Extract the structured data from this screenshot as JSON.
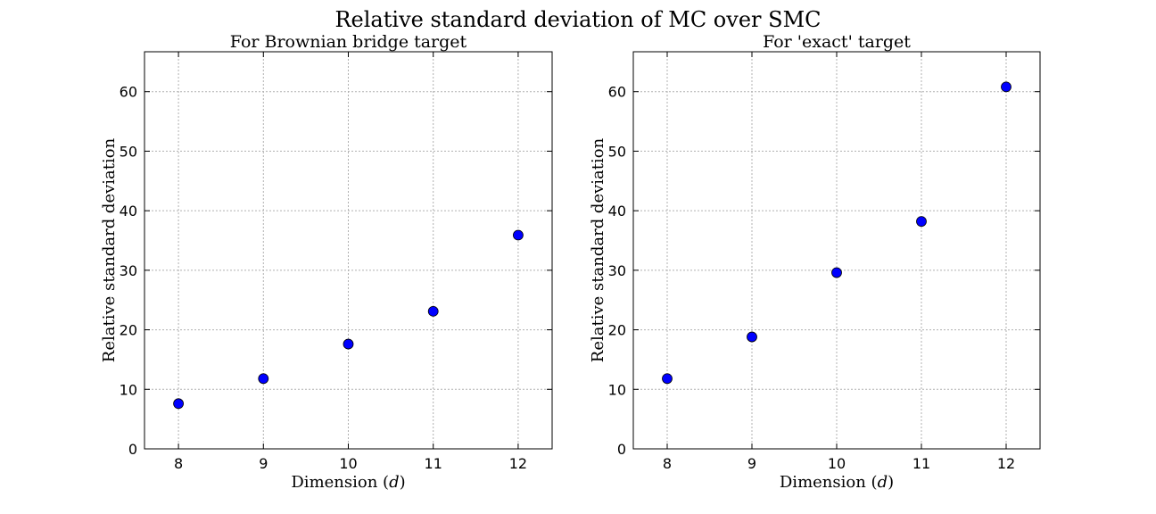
{
  "figure": {
    "title": "Relative standard deviation of MC over SMC"
  },
  "chart_data": [
    {
      "type": "scatter",
      "title": "For Brownian bridge target",
      "xlabel": "Dimension",
      "xlabel_var": "d",
      "ylabel": "Relative standard deviation",
      "x": [
        8,
        9,
        10,
        11,
        12
      ],
      "y": [
        7.6,
        11.8,
        17.6,
        23.1,
        35.9
      ],
      "xlim": [
        7.6,
        12.4
      ],
      "ylim": [
        0,
        66.7
      ],
      "xticks": [
        8,
        9,
        10,
        11,
        12
      ],
      "yticks": [
        0,
        10,
        20,
        30,
        40,
        50,
        60
      ],
      "grid": true,
      "marker_color": "#0000ff"
    },
    {
      "type": "scatter",
      "title": "For 'exact' target",
      "xlabel": "Dimension",
      "xlabel_var": "d",
      "ylabel": "Relative standard deviation",
      "x": [
        8,
        9,
        10,
        11,
        12
      ],
      "y": [
        11.8,
        18.8,
        29.6,
        38.2,
        60.8
      ],
      "xlim": [
        7.6,
        12.4
      ],
      "ylim": [
        0,
        66.7
      ],
      "xticks": [
        8,
        9,
        10,
        11,
        12
      ],
      "yticks": [
        0,
        10,
        20,
        30,
        40,
        50,
        60
      ],
      "grid": true,
      "marker_color": "#0000ff"
    }
  ]
}
